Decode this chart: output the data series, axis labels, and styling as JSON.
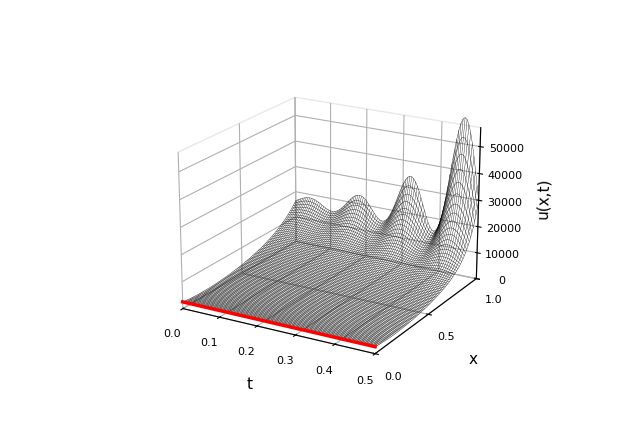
{
  "t_range": [
    0.0,
    0.5
  ],
  "x_range": [
    0.0,
    1.0
  ],
  "Nt": 100,
  "Nx": 80,
  "zlim": [
    0,
    57000
  ],
  "zlabel": "u(x,t)",
  "xlabel": "t",
  "ylabel": "x",
  "background_color": "#ffffff",
  "surface_color": "#000000",
  "red_line_color": "#ff0000",
  "elev": 20,
  "azim": -60,
  "ztick_labels": [
    "0",
    "10000",
    "20000",
    "30000",
    "40000",
    "50000"
  ],
  "zticks": [
    0,
    10000,
    20000,
    30000,
    40000,
    50000
  ],
  "x_ticks": [
    0.0,
    0.5,
    1.0
  ],
  "t_ticks": [
    0.0,
    0.1,
    0.2,
    0.3,
    0.4,
    0.5
  ]
}
